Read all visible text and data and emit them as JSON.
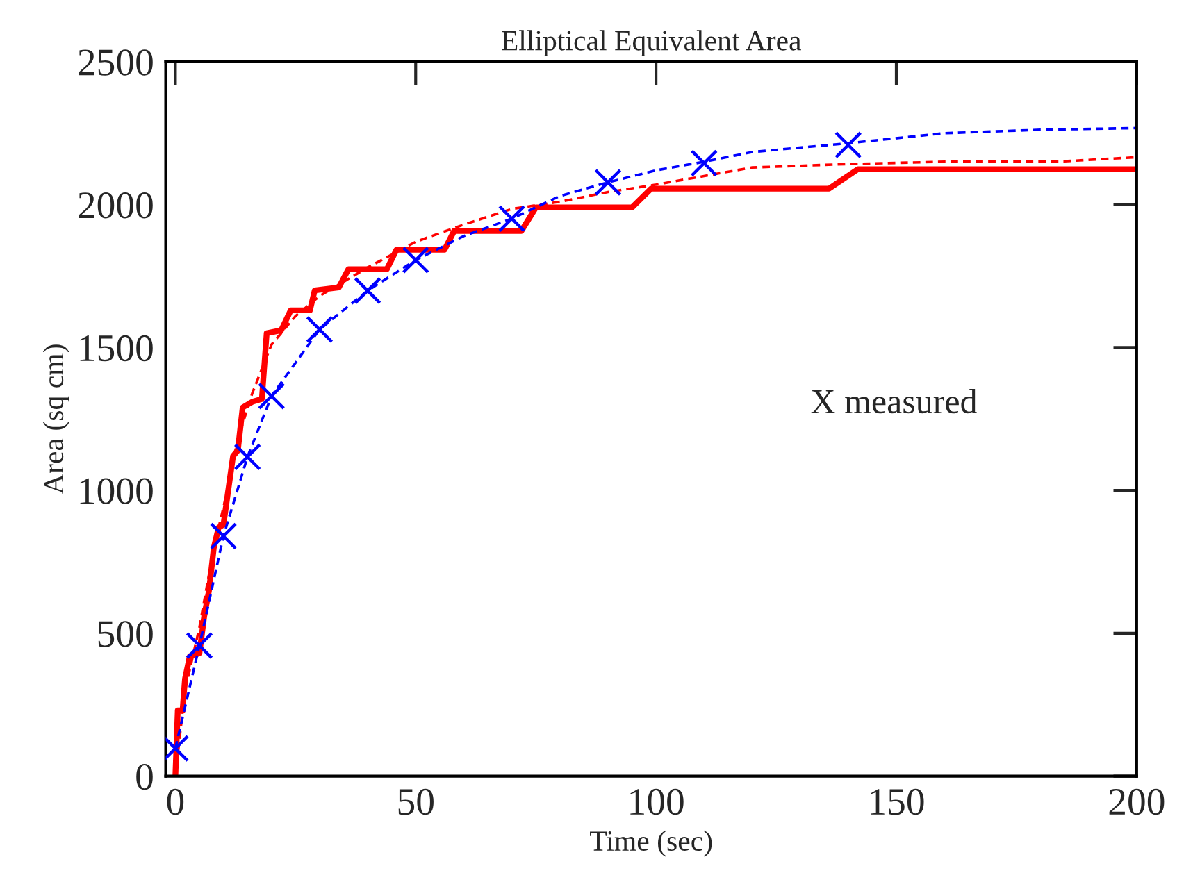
{
  "chart_data": {
    "type": "line",
    "title": "Elliptical Equivalent Area",
    "xlabel": "Time (sec)",
    "ylabel": "Area (sq cm)",
    "xlim": [
      -2,
      200
    ],
    "xticks": [
      0,
      50,
      100,
      150,
      200
    ],
    "ylim": [
      0,
      2500
    ],
    "yticks": [
      0,
      500,
      1000,
      1500,
      2000,
      2500
    ],
    "grid": false,
    "annotations": [
      "X measured"
    ],
    "series": [
      {
        "color": "#ff0000",
        "line_style": "solid",
        "x": [
          0,
          0.5,
          1.5,
          2,
          3,
          5,
          6,
          7,
          8,
          9,
          10,
          11,
          12,
          13,
          14,
          16,
          18,
          19,
          22,
          24,
          28,
          29,
          34,
          36,
          44,
          46,
          56,
          58,
          72,
          75,
          95,
          99,
          136,
          142,
          200
        ],
        "values": [
          0,
          230,
          230,
          340,
          420,
          430,
          560,
          650,
          800,
          870,
          880,
          1000,
          1120,
          1140,
          1290,
          1310,
          1320,
          1550,
          1560,
          1630,
          1630,
          1700,
          1710,
          1774,
          1774,
          1842,
          1842,
          1908,
          1908,
          1990,
          1990,
          2056,
          2056,
          2124,
          2124
        ]
      },
      {
        "color": "#ff0000",
        "line_style": "dashed",
        "x": [
          0,
          2,
          5,
          8,
          10,
          13,
          16,
          20,
          25,
          30,
          40,
          50,
          60,
          70,
          80,
          90,
          100,
          110,
          120,
          140,
          160,
          185,
          200
        ],
        "values": [
          0,
          300,
          520,
          800,
          940,
          1180,
          1340,
          1510,
          1610,
          1680,
          1780,
          1870,
          1930,
          1985,
          2010,
          2044,
          2070,
          2100,
          2130,
          2142,
          2150,
          2152,
          2166
        ]
      },
      {
        "color": "#0000ff",
        "line_style": "dashed",
        "x": [
          0,
          5,
          10,
          15,
          20,
          30,
          40,
          50,
          60,
          70,
          80,
          90,
          100,
          110,
          120,
          140,
          160,
          180,
          200
        ],
        "values": [
          97,
          457,
          840,
          1117,
          1330,
          1563,
          1699,
          1806,
          1890,
          1951,
          2030,
          2078,
          2120,
          2150,
          2184,
          2215,
          2250,
          2262,
          2268
        ]
      },
      {
        "type": "scatter",
        "color": "#0000ff",
        "marker": "cross",
        "x": [
          0,
          5,
          10,
          15,
          20,
          30,
          40,
          50,
          70,
          90,
          110,
          140
        ],
        "values": [
          97,
          457,
          840,
          1117,
          1330,
          1563,
          1699,
          1806,
          1951,
          2078,
          2145,
          2209
        ]
      }
    ]
  }
}
